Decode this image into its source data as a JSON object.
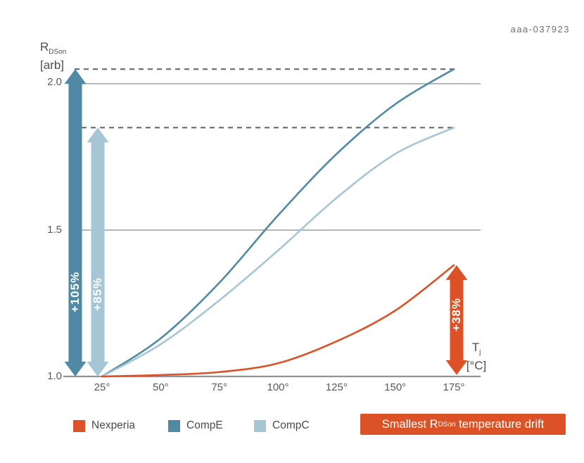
{
  "doc_code": "aaa-037923",
  "axes": {
    "y": {
      "title_main": "R",
      "title_sub": "DSon",
      "title_unit": "[arb]"
    },
    "x": {
      "title_main": "T",
      "title_sub": "j",
      "title_unit": "[°C]"
    }
  },
  "colors": {
    "nexperia_orange": "#DC5226",
    "compe_teal": "#4F89A3",
    "compc_lightblue": "#A6C5D5",
    "gridline": "#9B9FA1",
    "baseline": "#8F9396",
    "dashed_line": "#5E6163",
    "text_dark": "#4D4D4D"
  },
  "banner": {
    "prefix": "Smallest R",
    "sub": "DSon",
    "suffix": " temperature drift",
    "background": "#DC5226"
  },
  "chart_data": {
    "type": "line",
    "title": "",
    "xlabel": "Tj [°C]",
    "ylabel": "RDSon [arb]",
    "x": [
      25,
      50,
      75,
      100,
      125,
      150,
      175
    ],
    "x_tick_labels": [
      "25°",
      "50°",
      "75°",
      "100°",
      "125°",
      "150°",
      "175°"
    ],
    "y_ticks": {
      "values": [
        2.0,
        1.5,
        1.0
      ],
      "labels": [
        "2.0",
        "1.5",
        "1.0"
      ]
    },
    "xlim": [
      25,
      175
    ],
    "ylim": [
      1.0,
      2.1
    ],
    "grid": "horizontal-only",
    "legend_position": "bottom",
    "series": [
      {
        "name": "Nexperia",
        "color": "#DC5226",
        "values": [
          1.0,
          1.005,
          1.015,
          1.045,
          1.12,
          1.225,
          1.38
        ]
      },
      {
        "name": "CompE",
        "color": "#4F89A3",
        "values": [
          1.0,
          1.13,
          1.32,
          1.55,
          1.76,
          1.93,
          2.05
        ]
      },
      {
        "name": "CompC",
        "color": "#A6C5D5",
        "values": [
          1.0,
          1.11,
          1.26,
          1.43,
          1.61,
          1.76,
          1.85
        ]
      }
    ],
    "annotations": [
      {
        "label": "+105%",
        "series": "CompE",
        "from": 1.0,
        "to": 2.05,
        "color": "#4F89A3",
        "target_line_dashed": true
      },
      {
        "label": "+85%",
        "series": "CompC",
        "from": 1.0,
        "to": 1.85,
        "color": "#A6C5D5",
        "target_line_dashed": true
      },
      {
        "label": "+38%",
        "series": "Nexperia",
        "from": 1.005,
        "to": 1.38,
        "color": "#DC5226",
        "target_line_dashed": false
      }
    ]
  }
}
